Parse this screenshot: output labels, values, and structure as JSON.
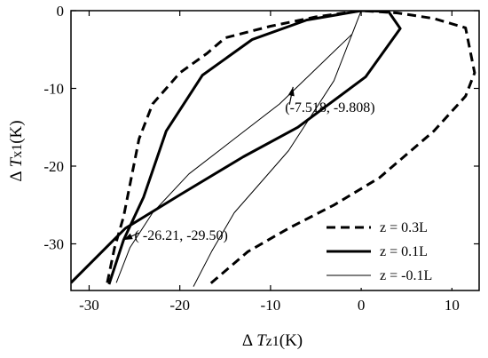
{
  "chart_data": {
    "type": "line",
    "xlabel": {
      "delta": "Δ",
      "var": "T",
      "sub": "z1",
      "unit": "(K)"
    },
    "ylabel": {
      "delta": "Δ",
      "var": "T",
      "sub": "x1",
      "unit": "(K)"
    },
    "xlim": [
      -32,
      13
    ],
    "ylim": [
      -36,
      0
    ],
    "xticks": [
      -30,
      -20,
      -10,
      0,
      10
    ],
    "yticks": [
      0,
      -10,
      -20,
      -30
    ],
    "grid": false,
    "legend_position": "bottom-right",
    "series": [
      {
        "name": "z = 0.3L",
        "style": "dashed",
        "width": 3,
        "points": [
          [
            -28,
            -35.0
          ],
          [
            -27.2,
            -30.5
          ],
          [
            -26.2,
            -26.5
          ],
          [
            -24.5,
            -16.5
          ],
          [
            -23.0,
            -12.0
          ],
          [
            -20.0,
            -8.0
          ],
          [
            -17.0,
            -5.5
          ],
          [
            -15.0,
            -3.5
          ],
          [
            -10.0,
            -2.0
          ],
          [
            -5.0,
            -0.8
          ],
          [
            0.0,
            0.0
          ],
          [
            4.0,
            -0.3
          ],
          [
            8.0,
            -1.0
          ],
          [
            11.5,
            -2.2
          ],
          [
            12.5,
            -8.0
          ],
          [
            11.5,
            -11.0
          ],
          [
            8.0,
            -15.5
          ],
          [
            5.0,
            -18.5
          ],
          [
            2.0,
            -21.5
          ],
          [
            -3.0,
            -25.0
          ],
          [
            -8.0,
            -28.0
          ],
          [
            -12.5,
            -31.0
          ],
          [
            -17.0,
            -35.5
          ]
        ]
      },
      {
        "name": "z = 0.1L",
        "style": "solid",
        "width": 3,
        "points": [
          [
            -27.8,
            -35.2
          ],
          [
            -26.2,
            -29.5
          ],
          [
            -24.0,
            -24.0
          ],
          [
            -21.5,
            -15.5
          ],
          [
            -17.5,
            -8.3
          ],
          [
            -12.0,
            -3.7
          ],
          [
            -6.0,
            -1.2
          ],
          [
            0.0,
            0.0
          ],
          [
            3.0,
            -0.1
          ],
          [
            4.3,
            -2.3
          ],
          [
            0.5,
            -8.5
          ],
          [
            -7.0,
            -15.0
          ],
          [
            -13.0,
            -18.8
          ],
          [
            -20.0,
            -23.7
          ],
          [
            -26.0,
            -28.0
          ],
          [
            -32.0,
            -35.0
          ]
        ]
      },
      {
        "name": "z = -0.1L",
        "style": "solid",
        "width": 1,
        "points": [
          [
            -27.0,
            -35.0
          ],
          [
            -25.5,
            -30.5
          ],
          [
            -23.0,
            -26.0
          ],
          [
            -19.0,
            -21.0
          ],
          [
            -14.0,
            -16.5
          ],
          [
            -9.0,
            -12.0
          ],
          [
            -5.0,
            -7.5
          ],
          [
            -1.0,
            -3.0
          ],
          [
            0.0,
            0.0
          ],
          [
            -3.0,
            -9.0
          ],
          [
            -8.0,
            -18.0
          ],
          [
            -11.0,
            -22.0
          ],
          [
            -14.0,
            -26.0
          ],
          [
            -16.5,
            -31.0
          ],
          [
            -18.5,
            -35.5
          ]
        ]
      }
    ],
    "annotations": [
      {
        "text": "(-7.518, -9.808)",
        "target": [
          -7.518,
          -9.808
        ],
        "label_at": [
          -8.4,
          -13.0
        ]
      },
      {
        "text": "( -26.21, -29.50)",
        "target": [
          -26.21,
          -29.5
        ],
        "label_at": [
          -25.0,
          -29.5
        ]
      }
    ]
  }
}
